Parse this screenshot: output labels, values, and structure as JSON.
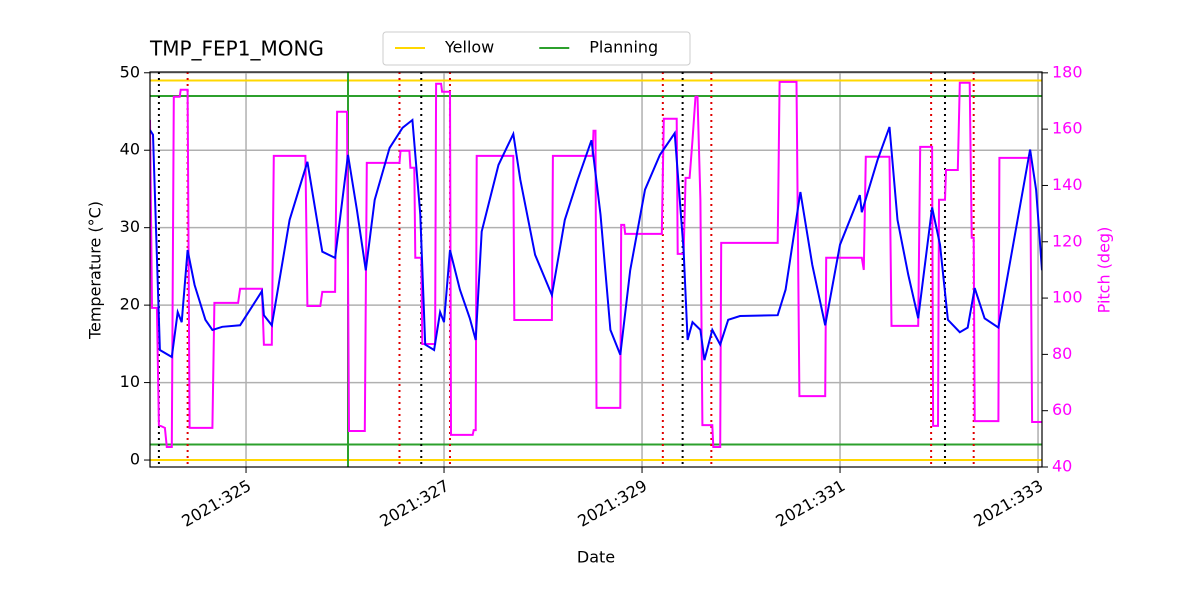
{
  "chart_data": {
    "type": "line",
    "title": "TMP_FEP1_MONG",
    "xlabel": "Date",
    "ylabel": "Temperature (°C)",
    "y2label": "Pitch (deg)",
    "xlim": [
      324.03,
      333.04
    ],
    "ylim": [
      -0.9,
      50.1
    ],
    "y2lim": [
      40,
      180.3
    ],
    "xticks": [
      {
        "value": 325,
        "label": "2021:325"
      },
      {
        "value": 327,
        "label": "2021:327"
      },
      {
        "value": 329,
        "label": "2021:329"
      },
      {
        "value": 331,
        "label": "2021:331"
      },
      {
        "value": 333,
        "label": "2021:333"
      }
    ],
    "yticks": [
      0,
      10,
      20,
      30,
      40,
      50
    ],
    "y2ticks": [
      40,
      60,
      80,
      100,
      120,
      140,
      160,
      180
    ],
    "grid": true,
    "legend": "top center",
    "y2color": "#ff00ff",
    "hlines": [
      {
        "name": "Yellow",
        "color": "#ffd700",
        "values": [
          49,
          0
        ]
      },
      {
        "name": "Planning",
        "color": "#2ca02c",
        "values": [
          47,
          2
        ]
      }
    ],
    "vlines": [
      {
        "color": "#000000",
        "style": "dotted",
        "x": [
          324.12,
          326.77,
          329.41,
          332.06
        ]
      },
      {
        "color": "#e00000",
        "style": "dotted",
        "x": [
          324.41,
          326.55,
          327.06,
          329.21,
          329.7,
          331.92,
          332.35
        ]
      },
      {
        "color": "#2ca02c",
        "style": "solid",
        "x": [
          326.03
        ]
      }
    ],
    "series": [
      {
        "color": "#0000ff",
        "x": [
          324.03,
          324.06,
          324.13,
          324.25,
          324.31,
          324.35,
          324.41,
          324.48,
          324.59,
          324.66,
          324.76,
          324.94,
          325.16,
          325.18,
          325.26,
          325.44,
          325.62,
          325.75,
          325.77,
          325.9,
          326.03,
          326.12,
          326.21,
          326.3,
          326.45,
          326.58,
          326.68,
          326.76,
          326.81,
          326.9,
          326.96,
          327.0,
          327.06,
          327.16,
          327.26,
          327.32,
          327.38,
          327.55,
          327.7,
          327.77,
          327.92,
          328.09,
          328.22,
          328.35,
          328.49,
          328.58,
          328.68,
          328.78,
          328.88,
          329.03,
          329.18,
          329.33,
          329.42,
          329.46,
          329.51,
          329.59,
          329.63,
          329.71,
          329.79,
          329.87,
          329.99,
          330.37,
          330.45,
          330.6,
          330.72,
          330.85,
          331.0,
          331.2,
          331.22,
          331.38,
          331.5,
          331.58,
          331.69,
          331.79,
          331.93,
          332.01,
          332.09,
          332.21,
          332.29,
          332.36,
          332.46,
          332.6,
          332.92,
          332.98,
          333.04
        ],
        "values": [
          42.6,
          42.0,
          14.2,
          13.3,
          19.1,
          17.8,
          27.1,
          22.6,
          18.1,
          16.8,
          17.2,
          17.4,
          21.8,
          18.7,
          17.4,
          31.0,
          38.5,
          28.4,
          26.9,
          26.1,
          39.4,
          32.3,
          24.5,
          33.6,
          40.3,
          42.9,
          43.9,
          31.7,
          14.9,
          14.2,
          19.1,
          17.8,
          27.1,
          22.0,
          18.3,
          15.5,
          29.5,
          38.1,
          42.1,
          36.2,
          26.5,
          21.3,
          31.0,
          36.2,
          41.3,
          31.7,
          16.8,
          13.6,
          24.5,
          34.9,
          39.4,
          42.2,
          27.1,
          15.5,
          17.8,
          16.8,
          12.9,
          16.8,
          14.9,
          18.1,
          18.6,
          18.7,
          22.0,
          34.6,
          25.2,
          17.4,
          27.8,
          34.2,
          32.0,
          38.8,
          43.0,
          31.0,
          23.9,
          18.3,
          32.6,
          27.8,
          18.1,
          16.5,
          17.1,
          22.2,
          18.3,
          17.1,
          40.1,
          34.9,
          24.5
        ]
      },
      {
        "color": "#ff00ff",
        "axis": "y2",
        "x": [
          324.03,
          324.05,
          324.1,
          324.12,
          324.18,
          324.2,
          324.25,
          324.27,
          324.33,
          324.34,
          324.41,
          324.43,
          324.66,
          324.68,
          324.92,
          324.94,
          325.16,
          325.18,
          325.26,
          325.28,
          325.6,
          325.62,
          325.75,
          325.77,
          325.9,
          325.92,
          326.02,
          326.04,
          326.2,
          326.22,
          326.55,
          326.56,
          326.65,
          326.66,
          326.7,
          326.71,
          326.77,
          326.78,
          326.91,
          326.92,
          326.97,
          326.98,
          327.06,
          327.07,
          327.29,
          327.3,
          327.32,
          327.33,
          327.7,
          327.71,
          328.09,
          328.1,
          328.5,
          328.51,
          328.53,
          328.54,
          328.78,
          328.79,
          328.82,
          328.83,
          329.2,
          329.22,
          329.35,
          329.36,
          329.42,
          329.44,
          329.48,
          329.51,
          329.54,
          329.56,
          329.59,
          329.61,
          329.71,
          329.72,
          329.79,
          329.8,
          330.37,
          330.39,
          330.56,
          330.59,
          330.85,
          330.86,
          331.22,
          331.24,
          331.26,
          331.5,
          331.52,
          331.79,
          331.81,
          331.93,
          331.94,
          331.99,
          332.0,
          332.06,
          332.07,
          332.19,
          332.21,
          332.31,
          332.33,
          332.35,
          332.36,
          332.6,
          332.61,
          332.92,
          332.94,
          333.04
        ],
        "values": [
          163.3,
          96.5,
          96.5,
          54.9,
          53.9,
          47.1,
          47.1,
          171.5,
          171.5,
          174.0,
          174.0,
          53.9,
          53.9,
          98.3,
          98.3,
          103.3,
          103.3,
          83.4,
          83.4,
          150.5,
          150.5,
          97.2,
          97.2,
          102.2,
          102.2,
          166.2,
          166.2,
          52.8,
          52.8,
          148.0,
          148.0,
          152.3,
          152.3,
          146.3,
          146.3,
          114.3,
          114.3,
          83.7,
          83.7,
          176.1,
          176.1,
          173.3,
          173.3,
          51.4,
          51.4,
          53.1,
          53.1,
          150.5,
          150.5,
          92.2,
          92.2,
          150.5,
          150.5,
          159.4,
          159.4,
          61.0,
          61.0,
          126.0,
          126.0,
          122.8,
          122.8,
          163.7,
          163.7,
          115.7,
          115.7,
          142.7,
          142.7,
          156.2,
          171.5,
          171.5,
          134.9,
          54.9,
          54.9,
          47.1,
          47.1,
          119.6,
          119.6,
          176.8,
          176.8,
          65.2,
          65.2,
          114.3,
          114.3,
          110.0,
          150.2,
          150.2,
          90.1,
          90.1,
          153.7,
          153.7,
          54.6,
          54.6,
          134.9,
          134.9,
          145.5,
          145.5,
          176.5,
          176.5,
          121.4,
          121.4,
          56.3,
          56.3,
          149.8,
          149.8,
          56.0,
          56.0
        ]
      }
    ]
  }
}
